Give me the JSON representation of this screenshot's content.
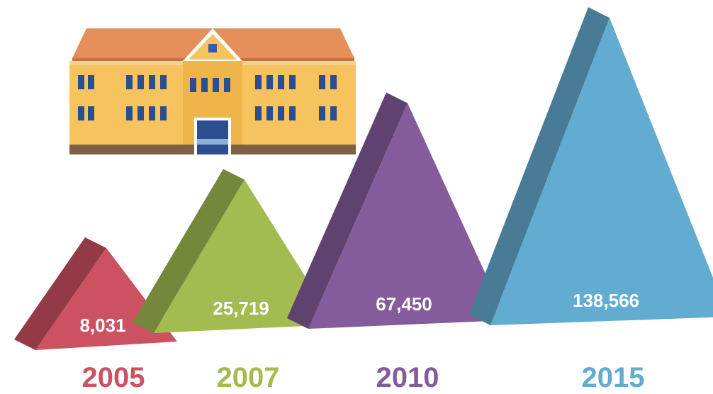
{
  "chart_data": {
    "type": "triangle",
    "categories": [
      "2005",
      "2007",
      "2010",
      "2015"
    ],
    "values": [
      8031,
      25719,
      67450,
      138566
    ],
    "value_labels": [
      "8,031",
      "25,719",
      "67,450",
      "138,566"
    ],
    "colors": [
      "#cc5161",
      "#a2bc52",
      "#845b9b",
      "#62abd1"
    ]
  }
}
